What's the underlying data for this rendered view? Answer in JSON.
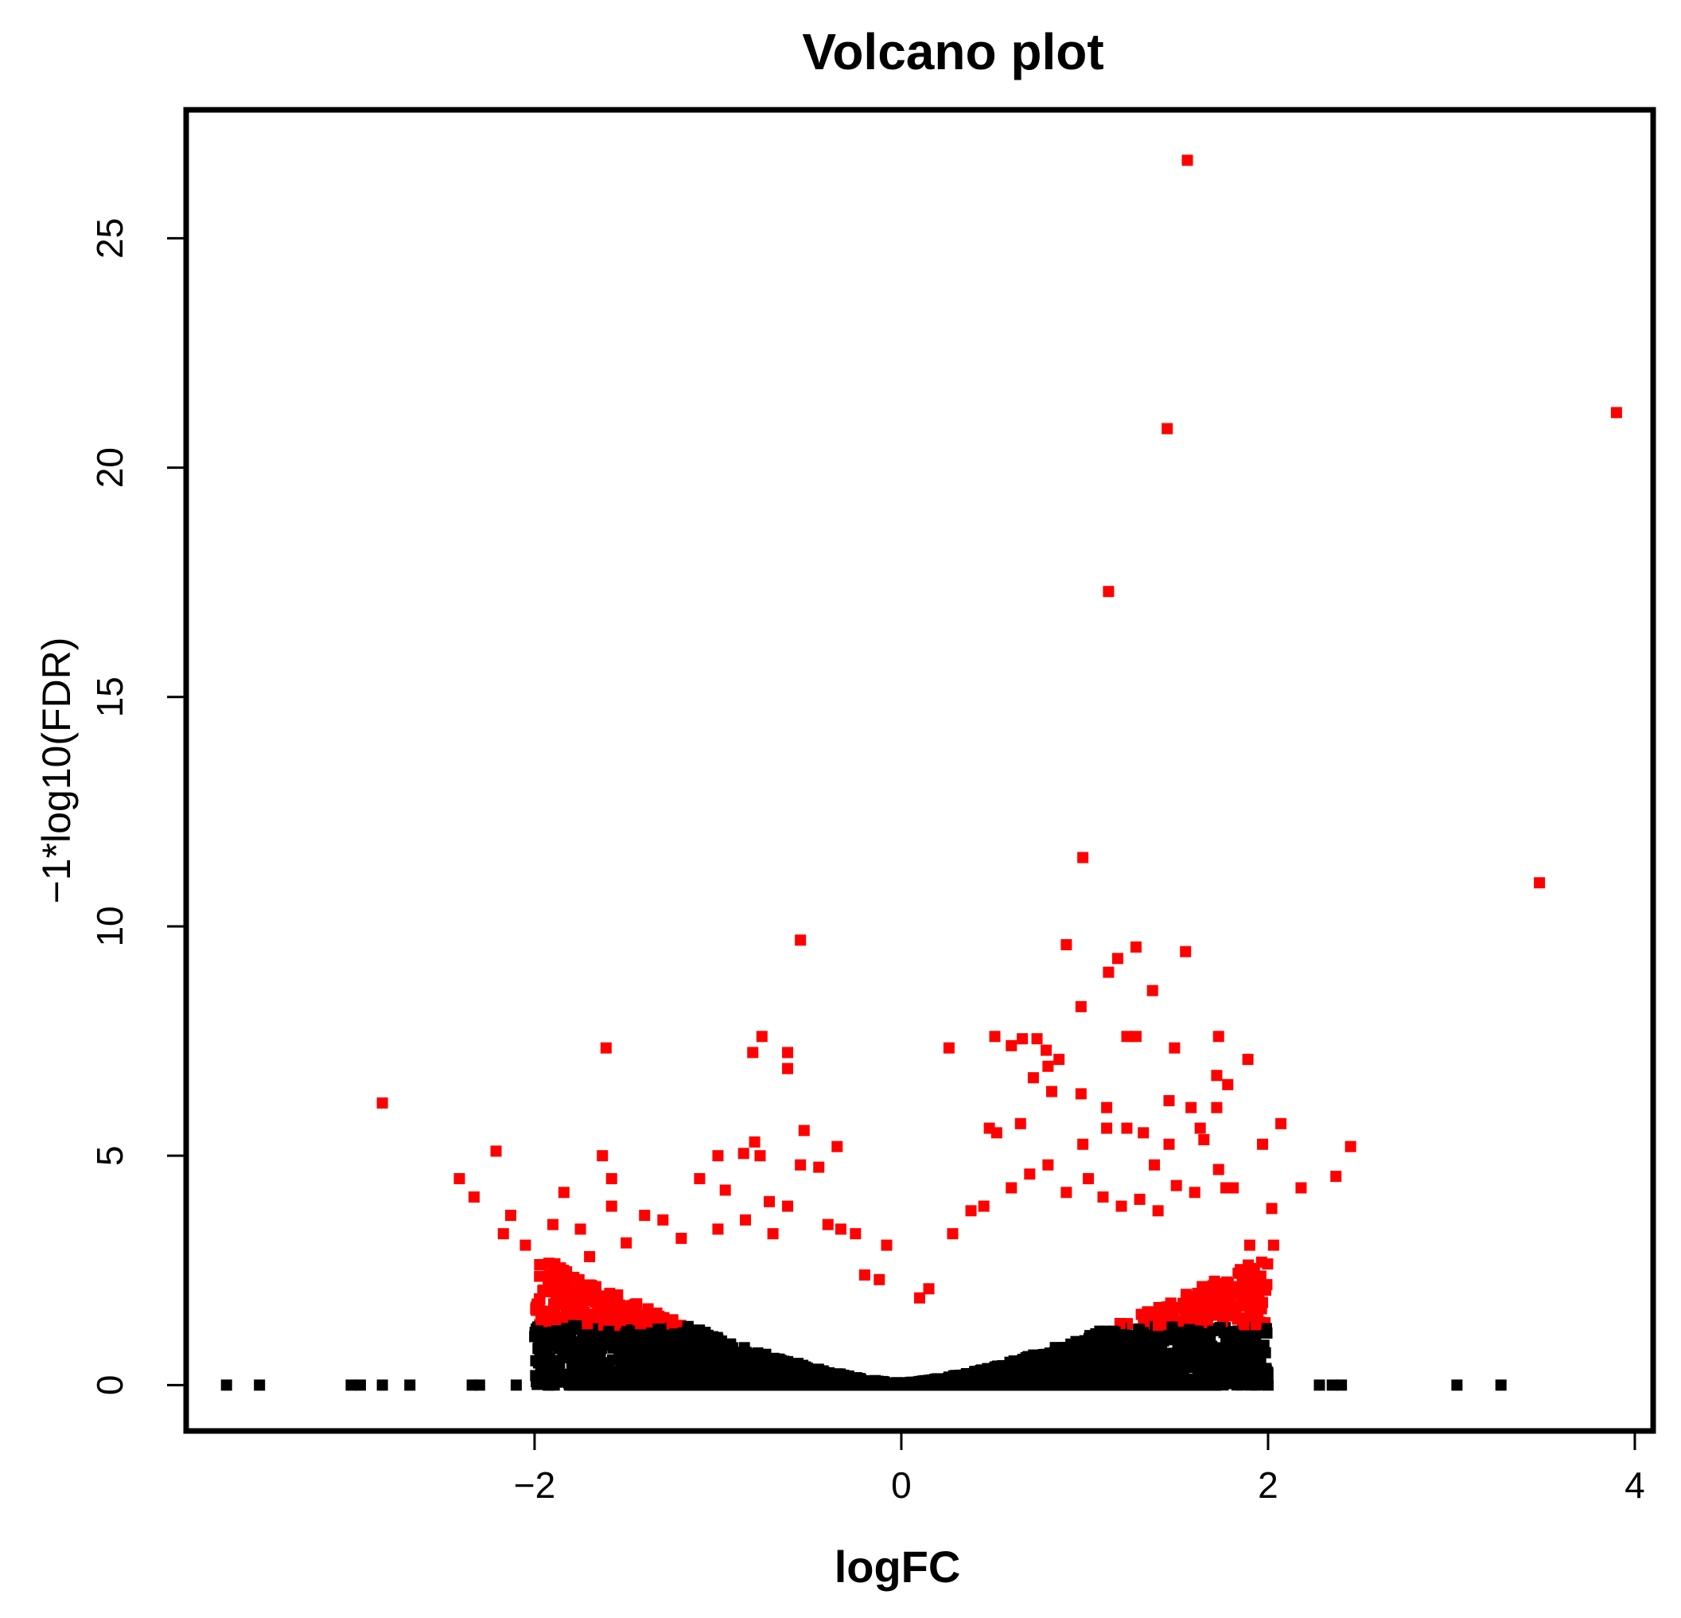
{
  "chart_data": {
    "type": "scatter",
    "title": "Volcano plot",
    "xlabel": "logFC",
    "ylabel": "−1*log10(FDR)",
    "xlim": [
      -3.9,
      4.1
    ],
    "ylim": [
      -1,
      27.8
    ],
    "x_ticks": [
      -2,
      0,
      2,
      4
    ],
    "x_tick_labels": [
      "−2",
      "0",
      "2",
      "4"
    ],
    "y_ticks": [
      0,
      5,
      10,
      15,
      20,
      25
    ],
    "y_tick_labels": [
      "0",
      "5",
      "10",
      "15",
      "20",
      "25"
    ],
    "grid": false,
    "legend": "none",
    "colors": {
      "significant": "#ff0000",
      "not_significant": "#000000"
    },
    "significant_points": [
      [
        1.56,
        26.7
      ],
      [
        1.45,
        20.85
      ],
      [
        3.9,
        21.2
      ],
      [
        1.13,
        17.3
      ],
      [
        0.99,
        11.5
      ],
      [
        3.48,
        10.95
      ],
      [
        -0.55,
        9.7
      ],
      [
        0.9,
        9.6
      ],
      [
        1.28,
        9.55
      ],
      [
        1.55,
        9.45
      ],
      [
        1.18,
        9.3
      ],
      [
        1.13,
        9.0
      ],
      [
        1.37,
        8.6
      ],
      [
        0.98,
        8.25
      ],
      [
        -0.76,
        7.6
      ],
      [
        -0.81,
        7.25
      ],
      [
        -0.62,
        7.25
      ],
      [
        -0.62,
        6.9
      ],
      [
        -1.61,
        7.35
      ],
      [
        0.26,
        7.35
      ],
      [
        0.51,
        7.6
      ],
      [
        0.6,
        7.4
      ],
      [
        0.66,
        7.55
      ],
      [
        0.74,
        7.55
      ],
      [
        0.79,
        7.3
      ],
      [
        0.8,
        6.95
      ],
      [
        0.72,
        6.7
      ],
      [
        0.86,
        7.1
      ],
      [
        0.82,
        6.4
      ],
      [
        0.98,
        6.35
      ],
      [
        1.23,
        7.6
      ],
      [
        1.28,
        7.6
      ],
      [
        1.49,
        7.35
      ],
      [
        1.73,
        7.6
      ],
      [
        1.89,
        7.1
      ],
      [
        1.72,
        6.75
      ],
      [
        1.78,
        6.55
      ],
      [
        1.58,
        6.05
      ],
      [
        1.46,
        6.2
      ],
      [
        1.72,
        6.05
      ],
      [
        1.12,
        6.05
      ],
      [
        -2.83,
        6.15
      ],
      [
        -2.21,
        5.1
      ],
      [
        -2.41,
        4.5
      ],
      [
        -2.33,
        4.1
      ],
      [
        -2.13,
        3.7
      ],
      [
        -1.63,
        5.0
      ],
      [
        -1.58,
        4.5
      ],
      [
        -0.8,
        5.3
      ],
      [
        -0.77,
        5.0
      ],
      [
        -0.86,
        5.05
      ],
      [
        -0.53,
        5.55
      ],
      [
        -0.35,
        5.2
      ],
      [
        -0.55,
        4.8
      ],
      [
        -0.45,
        4.75
      ],
      [
        -1.1,
        4.5
      ],
      [
        -1.0,
        5.0
      ],
      [
        -0.96,
        4.25
      ],
      [
        -0.72,
        4.0
      ],
      [
        0.48,
        5.6
      ],
      [
        0.52,
        5.5
      ],
      [
        0.65,
        5.7
      ],
      [
        0.99,
        5.25
      ],
      [
        1.12,
        5.6
      ],
      [
        1.23,
        5.6
      ],
      [
        1.32,
        5.5
      ],
      [
        1.46,
        5.25
      ],
      [
        1.63,
        5.6
      ],
      [
        1.65,
        5.35
      ],
      [
        1.97,
        5.25
      ],
      [
        2.07,
        5.7
      ],
      [
        2.45,
        5.2
      ],
      [
        1.73,
        4.7
      ],
      [
        1.77,
        4.3
      ],
      [
        1.81,
        4.3
      ],
      [
        2.18,
        4.3
      ],
      [
        2.37,
        4.55
      ],
      [
        1.38,
        4.8
      ],
      [
        1.5,
        4.35
      ],
      [
        1.6,
        4.2
      ],
      [
        2.02,
        3.85
      ],
      [
        2.03,
        3.05
      ],
      [
        1.9,
        3.05
      ],
      [
        -1.84,
        4.2
      ],
      [
        -1.9,
        3.5
      ],
      [
        -1.75,
        3.4
      ],
      [
        -1.4,
        3.7
      ],
      [
        -1.3,
        3.6
      ],
      [
        -0.08,
        3.05
      ],
      [
        -2.05,
        3.05
      ],
      [
        -2.17,
        3.3
      ],
      [
        -1.58,
        3.9
      ],
      [
        -0.2,
        2.4
      ],
      [
        0.1,
        1.9
      ],
      [
        0.15,
        2.1
      ],
      [
        -0.12,
        2.3
      ],
      [
        -0.25,
        3.3
      ],
      [
        -0.33,
        3.4
      ],
      [
        -0.4,
        3.5
      ],
      [
        0.28,
        3.3
      ],
      [
        0.38,
        3.8
      ],
      [
        0.45,
        3.9
      ],
      [
        0.6,
        4.3
      ],
      [
        0.7,
        4.6
      ],
      [
        0.8,
        4.8
      ],
      [
        0.9,
        4.2
      ],
      [
        1.02,
        4.5
      ],
      [
        1.1,
        4.1
      ],
      [
        1.2,
        3.9
      ],
      [
        1.3,
        4.05
      ],
      [
        1.4,
        3.8
      ],
      [
        -0.62,
        3.9
      ],
      [
        -0.7,
        3.3
      ],
      [
        -0.85,
        3.6
      ],
      [
        -1.0,
        3.4
      ],
      [
        -1.2,
        3.2
      ],
      [
        -1.5,
        3.1
      ],
      [
        -1.7,
        2.8
      ]
    ]
  }
}
